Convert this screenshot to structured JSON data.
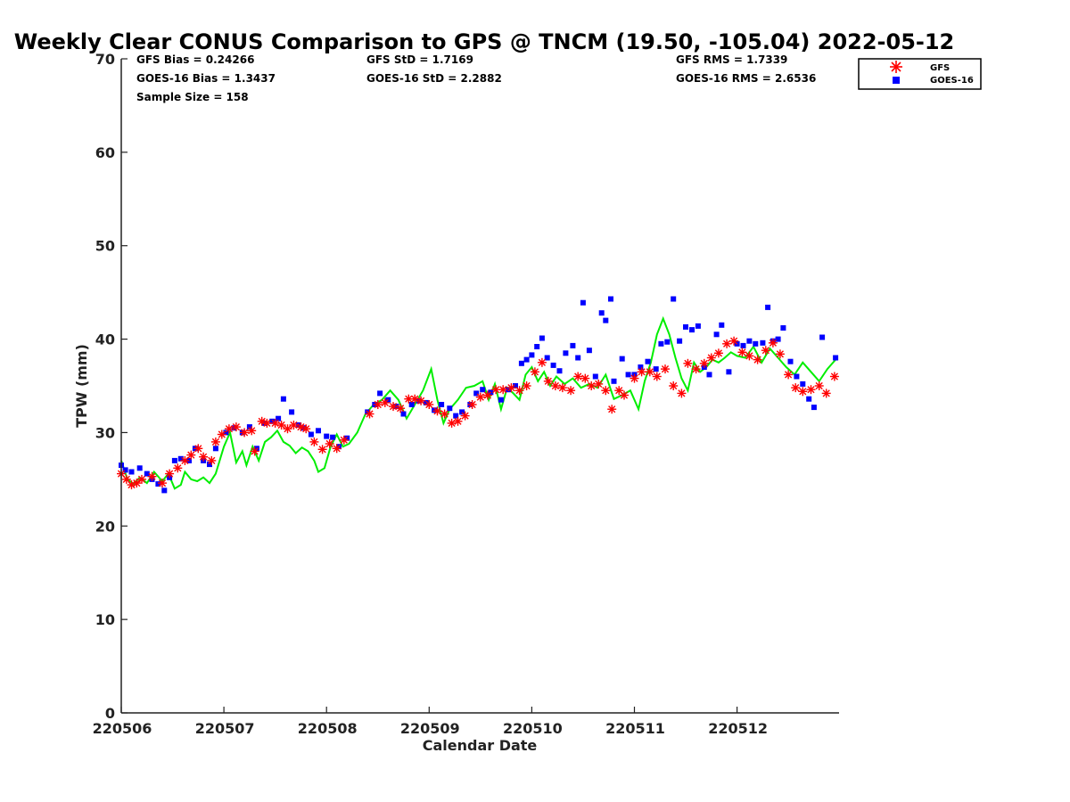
{
  "chart_data": {
    "type": "scatter",
    "title": "Weekly Clear CONUS Comparison to GPS @ TNCM (19.50, -105.04) 2022-05-12",
    "xlabel": "Calendar Date",
    "ylabel": "TPW (mm)",
    "xlim": [
      220506,
      220513
    ],
    "ylim": [
      0,
      70
    ],
    "x_ticks": [
      "220506",
      "220507",
      "220508",
      "220509",
      "220510",
      "220511",
      "220512"
    ],
    "y_ticks": [
      0,
      10,
      20,
      30,
      40,
      50,
      60,
      70
    ],
    "grid": false,
    "legend_position": "top-right",
    "stats": {
      "gfs_bias": "GFS Bias = 0.24266",
      "goes_bias": "GOES-16 Bias = 1.3437",
      "sample_size": "Sample Size = 158",
      "gfs_std": "GFS StD = 1.7169",
      "goes_std": "GOES-16 StD = 2.2882",
      "gfs_rms": "GFS RMS = 1.7339",
      "goes_rms": "GOES-16 RMS = 2.6536"
    },
    "series": [
      {
        "name": "GFS",
        "marker": "asterisk",
        "color": "#ff0000",
        "x": [
          220506.0,
          220506.05,
          220506.1,
          220506.15,
          220506.2,
          220506.3,
          220506.4,
          220506.47,
          220506.55,
          220506.62,
          220506.68,
          220506.75,
          220506.8,
          220506.88,
          220506.92,
          220506.98,
          220507.05,
          220507.12,
          220507.2,
          220507.27,
          220507.3,
          220507.37,
          220507.42,
          220507.5,
          220507.56,
          220507.62,
          220507.68,
          220507.75,
          220507.8,
          220507.88,
          220507.96,
          220508.03,
          220508.1,
          220508.17,
          220508.42,
          220508.5,
          220508.57,
          220508.65,
          220508.72,
          220508.8,
          220508.86,
          220508.92,
          220509.0,
          220509.08,
          220509.15,
          220509.22,
          220509.28,
          220509.35,
          220509.42,
          220509.5,
          220509.57,
          220509.65,
          220509.72,
          220509.8,
          220509.88,
          220509.95,
          220510.03,
          220510.1,
          220510.16,
          220510.23,
          220510.3,
          220510.38,
          220510.45,
          220510.52,
          220510.58,
          220510.65,
          220510.72,
          220510.78,
          220510.85,
          220510.9,
          220511.0,
          220511.07,
          220511.15,
          220511.22,
          220511.3,
          220511.38,
          220511.46,
          220511.52,
          220511.6,
          220511.68,
          220511.75,
          220511.82,
          220511.9,
          220511.97,
          220512.05,
          220512.12,
          220512.2,
          220512.28,
          220512.35,
          220512.42,
          220512.5,
          220512.57,
          220512.64,
          220512.72,
          220512.8,
          220512.87,
          220512.95
        ],
        "y": [
          25.6,
          25.0,
          24.4,
          24.6,
          25.0,
          25.3,
          24.6,
          25.6,
          26.2,
          27.0,
          27.6,
          28.3,
          27.4,
          27.0,
          29.0,
          29.8,
          30.4,
          30.6,
          30.0,
          30.2,
          28.0,
          31.2,
          31.0,
          31.0,
          30.8,
          30.4,
          30.8,
          30.6,
          30.4,
          29.0,
          28.2,
          28.8,
          28.3,
          29.2,
          32.0,
          33.0,
          33.2,
          32.8,
          32.6,
          33.6,
          33.6,
          33.4,
          33.0,
          32.3,
          32.0,
          31.0,
          31.2,
          31.8,
          33.0,
          33.8,
          34.0,
          34.6,
          34.6,
          34.8,
          34.5,
          35.0,
          36.5,
          37.5,
          35.5,
          35.0,
          34.8,
          34.5,
          36.0,
          35.8,
          35.0,
          35.2,
          34.5,
          32.5,
          34.5,
          34.0,
          35.8,
          36.5,
          36.5,
          36.0,
          36.8,
          35.0,
          34.2,
          37.4,
          36.8,
          37.4,
          38.0,
          38.5,
          39.5,
          39.8,
          38.6,
          38.2,
          37.8,
          38.8,
          39.6,
          38.4,
          36.2,
          34.8,
          34.4,
          34.6,
          35.0,
          34.2,
          36.0
        ]
      },
      {
        "name": "GOES-16",
        "marker": "square",
        "color": "#0000ff",
        "x": [
          220506.0,
          220506.04,
          220506.1,
          220506.18,
          220506.25,
          220506.3,
          220506.36,
          220506.42,
          220506.47,
          220506.52,
          220506.58,
          220506.66,
          220506.72,
          220506.8,
          220506.86,
          220506.92,
          220507.02,
          220507.1,
          220507.18,
          220507.25,
          220507.32,
          220507.4,
          220507.47,
          220507.53,
          220507.58,
          220507.66,
          220507.73,
          220507.78,
          220507.85,
          220507.92,
          220508.0,
          220508.06,
          220508.12,
          220508.2,
          220508.4,
          220508.47,
          220508.52,
          220508.6,
          220508.68,
          220508.75,
          220508.83,
          220508.9,
          220508.97,
          220509.05,
          220509.12,
          220509.2,
          220509.26,
          220509.32,
          220509.4,
          220509.46,
          220509.52,
          220509.6,
          220509.7,
          220509.77,
          220509.84,
          220509.9,
          220509.95,
          220510.0,
          220510.05,
          220510.1,
          220510.15,
          220510.21,
          220510.27,
          220510.33,
          220510.4,
          220510.45,
          220510.5,
          220510.56,
          220510.62,
          220510.68,
          220510.72,
          220510.77,
          220510.8,
          220510.88,
          220510.94,
          220511.0,
          220511.06,
          220511.13,
          220511.21,
          220511.26,
          220511.32,
          220511.38,
          220511.44,
          220511.5,
          220511.56,
          220511.62,
          220511.68,
          220511.73,
          220511.8,
          220511.85,
          220511.92,
          220512.0,
          220512.06,
          220512.12,
          220512.18,
          220512.25,
          220512.3,
          220512.35,
          220512.4,
          220512.45,
          220512.52,
          220512.58,
          220512.64,
          220512.7,
          220512.75,
          220512.83,
          220512.96
        ],
        "y": [
          26.5,
          26.0,
          25.8,
          26.2,
          25.6,
          25.0,
          24.5,
          23.8,
          25.2,
          27.0,
          27.2,
          27.0,
          28.3,
          27.0,
          26.6,
          28.3,
          30.0,
          30.5,
          30.0,
          30.6,
          28.3,
          31.0,
          31.2,
          31.5,
          33.6,
          32.2,
          30.8,
          30.5,
          29.8,
          30.2,
          29.6,
          29.5,
          28.5,
          29.4,
          32.2,
          33.0,
          34.2,
          33.5,
          32.8,
          32.0,
          33.0,
          33.4,
          33.2,
          32.4,
          33.0,
          32.6,
          31.8,
          32.2,
          33.0,
          34.2,
          34.6,
          34.3,
          33.5,
          34.6,
          35.0,
          37.4,
          37.8,
          38.3,
          39.2,
          40.1,
          38.0,
          37.2,
          36.6,
          38.5,
          39.3,
          38.0,
          43.9,
          38.8,
          36.0,
          42.8,
          42.0,
          44.3,
          35.5,
          37.9,
          36.2,
          36.2,
          37.0,
          37.6,
          36.8,
          39.5,
          39.7,
          44.3,
          39.8,
          41.3,
          41.0,
          41.4,
          37.0,
          36.2,
          40.5,
          41.5,
          36.5,
          39.5,
          39.3,
          39.8,
          39.5,
          39.6,
          43.4,
          39.8,
          40.0,
          41.2,
          37.6,
          36.0,
          35.2,
          33.6,
          32.7,
          40.2,
          38.0
        ]
      },
      {
        "name": "GPS",
        "marker": "line",
        "color": "#00ee00",
        "x": [
          220506.0,
          220506.06,
          220506.12,
          220506.18,
          220506.25,
          220506.32,
          220506.4,
          220506.46,
          220506.52,
          220506.58,
          220506.62,
          220506.68,
          220506.74,
          220506.8,
          220506.86,
          220506.92,
          220507.0,
          220507.06,
          220507.12,
          220507.18,
          220507.22,
          220507.28,
          220507.34,
          220507.4,
          220507.46,
          220507.52,
          220507.58,
          220507.64,
          220507.7,
          220507.76,
          220507.82,
          220507.88,
          220507.92,
          220507.98,
          220508.04,
          220508.1,
          220508.16,
          220508.22,
          220508.3,
          220508.38,
          220508.46,
          220508.54,
          220508.62,
          220508.7,
          220508.78,
          220508.86,
          220508.94,
          220509.02,
          220509.08,
          220509.14,
          220509.2,
          220509.28,
          220509.36,
          220509.44,
          220509.52,
          220509.58,
          220509.64,
          220509.7,
          220509.76,
          220509.82,
          220509.88,
          220509.94,
          220510.0,
          220510.06,
          220510.12,
          220510.18,
          220510.24,
          220510.32,
          220510.4,
          220510.48,
          220510.56,
          220510.64,
          220510.72,
          220510.8,
          220510.88,
          220510.96,
          220511.04,
          220511.1,
          220511.16,
          220511.22,
          220511.28,
          220511.34,
          220511.4,
          220511.46,
          220511.52,
          220511.58,
          220511.64,
          220511.7,
          220511.76,
          220511.82,
          220511.88,
          220511.94,
          220512.0,
          220512.08,
          220512.16,
          220512.24,
          220512.32,
          220512.4,
          220512.48,
          220512.56,
          220512.64,
          220512.72,
          220512.8,
          220512.88,
          220512.96
        ],
        "y": [
          27.0,
          25.0,
          24.5,
          25.2,
          24.6,
          25.8,
          24.8,
          25.6,
          24.0,
          24.4,
          25.8,
          25.0,
          24.8,
          25.2,
          24.6,
          25.6,
          28.5,
          30.0,
          26.8,
          28.0,
          26.5,
          28.5,
          27.0,
          29.0,
          29.5,
          30.2,
          29.0,
          28.6,
          27.8,
          28.4,
          28.0,
          27.0,
          25.8,
          26.2,
          28.5,
          29.8,
          28.5,
          28.8,
          30.0,
          32.0,
          33.0,
          33.5,
          34.5,
          33.5,
          31.5,
          33.0,
          34.5,
          36.8,
          33.5,
          31.0,
          32.5,
          33.5,
          34.8,
          35.0,
          35.5,
          33.5,
          35.2,
          32.5,
          34.8,
          34.2,
          33.5,
          36.2,
          37.0,
          35.5,
          36.5,
          35.0,
          36.0,
          35.2,
          35.8,
          34.8,
          35.2,
          34.8,
          36.2,
          33.6,
          34.0,
          34.5,
          32.5,
          35.5,
          37.5,
          40.5,
          42.2,
          40.5,
          38.0,
          35.8,
          34.5,
          37.5,
          36.5,
          37.0,
          37.8,
          37.5,
          38.0,
          38.6,
          38.2,
          38.0,
          39.2,
          37.5,
          39.0,
          38.0,
          37.0,
          36.2,
          37.5,
          36.5,
          35.5,
          36.8,
          37.8
        ]
      }
    ]
  }
}
